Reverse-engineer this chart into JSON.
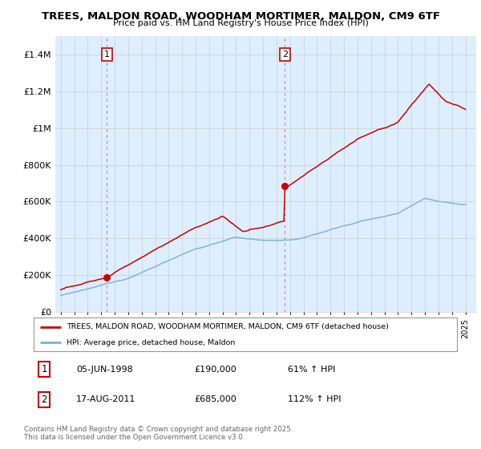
{
  "title_line1": "TREES, MALDON ROAD, WOODHAM MORTIMER, MALDON, CM9 6TF",
  "title_line2": "Price paid vs. HM Land Registry's House Price Index (HPI)",
  "ylim": [
    0,
    1500000
  ],
  "yticks": [
    0,
    200000,
    400000,
    600000,
    800000,
    1000000,
    1200000,
    1400000
  ],
  "ytick_labels": [
    "£0",
    "£200K",
    "£400K",
    "£600K",
    "£800K",
    "£1M",
    "£1.2M",
    "£1.4M"
  ],
  "property_color": "#cc0000",
  "hpi_color": "#7ab0d4",
  "marker_vline_color": "#e88888",
  "chart_bg_color": "#ddeeff",
  "marker1_date": 1998.42,
  "marker1_price": 190000,
  "marker1_label": "05-JUN-1998",
  "marker1_value": "£190,000",
  "marker1_pct": "61% ↑ HPI",
  "marker2_date": 2011.62,
  "marker2_price": 685000,
  "marker2_label": "17-AUG-2011",
  "marker2_value": "£685,000",
  "marker2_pct": "112% ↑ HPI",
  "legend_line1": "TREES, MALDON ROAD, WOODHAM MORTIMER, MALDON, CM9 6TF (detached house)",
  "legend_line2": "HPI: Average price, detached house, Maldon",
  "footnote": "Contains HM Land Registry data © Crown copyright and database right 2025.\nThis data is licensed under the Open Government Licence v3.0.",
  "background_color": "#ffffff",
  "grid_color": "#cccccc"
}
